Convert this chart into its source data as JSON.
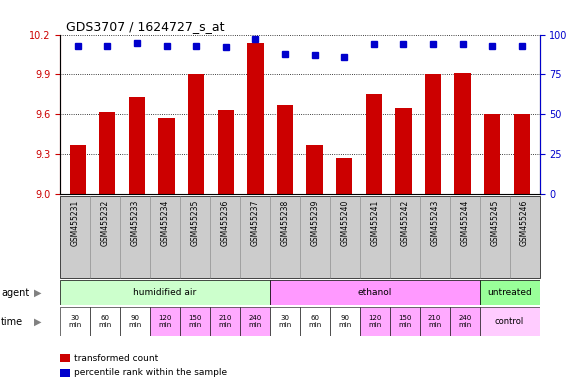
{
  "title": "GDS3707 / 1624727_s_at",
  "samples": [
    "GSM455231",
    "GSM455232",
    "GSM455233",
    "GSM455234",
    "GSM455235",
    "GSM455236",
    "GSM455237",
    "GSM455238",
    "GSM455239",
    "GSM455240",
    "GSM455241",
    "GSM455242",
    "GSM455243",
    "GSM455244",
    "GSM455245",
    "GSM455246"
  ],
  "bar_values": [
    9.37,
    9.62,
    9.73,
    9.57,
    9.9,
    9.63,
    10.14,
    9.67,
    9.37,
    9.27,
    9.75,
    9.65,
    9.9,
    9.91,
    9.6,
    9.6
  ],
  "percentile_values": [
    93,
    93,
    95,
    93,
    93,
    92,
    97,
    88,
    87,
    86,
    94,
    94,
    94,
    94,
    93,
    93
  ],
  "ylim_left": [
    9.0,
    10.2
  ],
  "ylim_right": [
    0,
    100
  ],
  "yticks_left": [
    9.0,
    9.3,
    9.6,
    9.9,
    10.2
  ],
  "yticks_right": [
    0,
    25,
    50,
    75,
    100
  ],
  "bar_color": "#cc0000",
  "dot_color": "#0000cc",
  "agent_groups": [
    {
      "label": "humidified air",
      "start": 0,
      "end": 7,
      "color": "#ccffcc"
    },
    {
      "label": "ethanol",
      "start": 7,
      "end": 14,
      "color": "#ff99ff"
    },
    {
      "label": "untreated",
      "start": 14,
      "end": 16,
      "color": "#99ff99"
    }
  ],
  "time_labels": [
    "30\nmin",
    "60\nmin",
    "90\nmin",
    "120\nmin",
    "150\nmin",
    "210\nmin",
    "240\nmin",
    "30\nmin",
    "60\nmin",
    "90\nmin",
    "120\nmin",
    "150\nmin",
    "210\nmin",
    "240\nmin"
  ],
  "time_colors": [
    "#ffffff",
    "#ffffff",
    "#ffffff",
    "#ffaaff",
    "#ffaaff",
    "#ffaaff",
    "#ffaaff",
    "#ffffff",
    "#ffffff",
    "#ffffff",
    "#ffaaff",
    "#ffaaff",
    "#ffaaff",
    "#ffaaff"
  ],
  "control_label": "control",
  "control_color": "#ffccff",
  "legend_items": [
    {
      "color": "#cc0000",
      "label": "transformed count"
    },
    {
      "color": "#0000cc",
      "label": "percentile rank within the sample"
    }
  ],
  "grid_color": "#000000",
  "bg_color": "#ffffff",
  "label_row_bg": "#cccccc",
  "agent_label": "agent",
  "time_label": "time",
  "tick_label_fontsize": 5.5,
  "axis_fontsize": 7,
  "title_fontsize": 9
}
